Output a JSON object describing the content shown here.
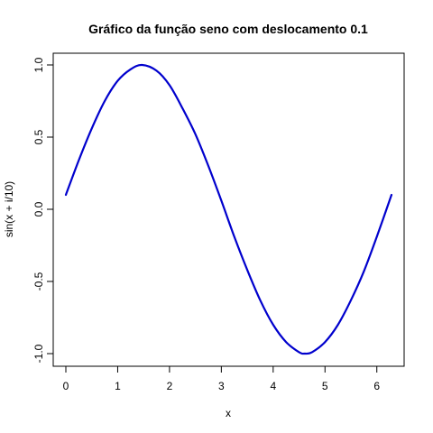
{
  "chart_data": {
    "type": "line",
    "title": "Gráfico da função seno com deslocamento 0.1",
    "xlabel": "x",
    "ylabel": "sin(x + i/10)",
    "xlim": [
      0,
      6.2832
    ],
    "ylim": [
      -1,
      1
    ],
    "x_ticks": [
      0,
      1,
      2,
      3,
      4,
      5,
      6
    ],
    "x_tick_labels": [
      "0",
      "1",
      "2",
      "3",
      "4",
      "5",
      "6"
    ],
    "y_ticks": [
      -1,
      -0.5,
      0,
      0.5,
      1
    ],
    "y_tick_labels": [
      "-1.0",
      "-0.5",
      "0.0",
      "0.5",
      "1.0"
    ],
    "grid": false,
    "series": [
      {
        "color": "#0000cd",
        "x": [
          0,
          0.25,
          0.5,
          0.75,
          1.0,
          1.25,
          1.4708,
          1.75,
          2.0,
          2.25,
          2.5,
          2.75,
          3.0,
          3.25,
          3.5,
          3.75,
          4.0,
          4.25,
          4.5,
          4.6124,
          4.75,
          5.0,
          5.25,
          5.5,
          5.75,
          6.0,
          6.2832
        ],
        "y": [
          0.1,
          0.34,
          0.56,
          0.75,
          0.89,
          0.97,
          1.0,
          0.96,
          0.86,
          0.7,
          0.52,
          0.3,
          0.06,
          -0.19,
          -0.42,
          -0.63,
          -0.8,
          -0.92,
          -0.99,
          -1.0,
          -0.99,
          -0.92,
          -0.8,
          -0.63,
          -0.43,
          -0.19,
          0.1
        ]
      }
    ]
  }
}
